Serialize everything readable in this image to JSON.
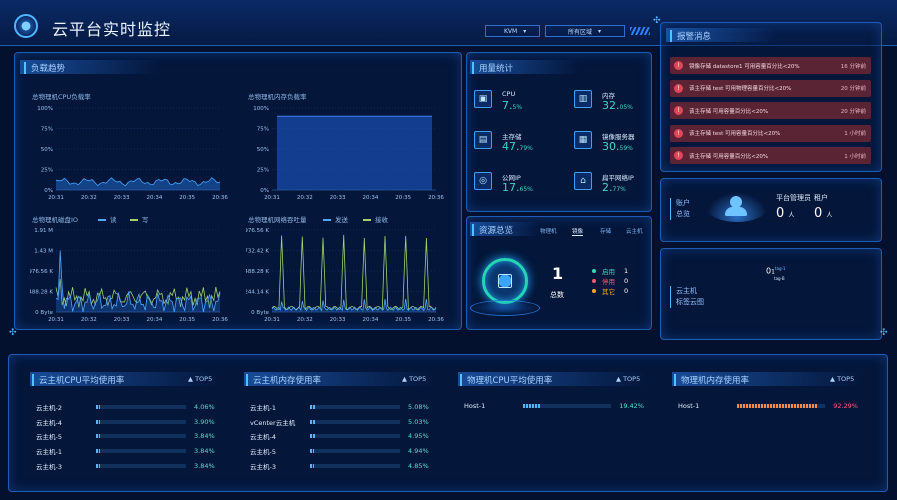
{
  "header": {
    "title": "云平台实时监控",
    "kvm": "KVM",
    "region": "所有区域"
  },
  "load_panel": {
    "title": "负载趋势",
    "cpu": {
      "title": "总物理机CPU负载率",
      "yticks": [
        "100%",
        "75%",
        "50%",
        "25%",
        "0%"
      ],
      "xticks": [
        "20:31",
        "20:32",
        "20:33",
        "20:34",
        "20:35",
        "20:36"
      ]
    },
    "mem": {
      "title": "总物理机内存负载率",
      "yticks": [
        "100%",
        "75%",
        "50%",
        "25%",
        "0%"
      ],
      "xticks": [
        "20:31",
        "20:32",
        "20:33",
        "20:34",
        "20:35",
        "20:36"
      ]
    },
    "disk": {
      "title": "总物理机磁盘IO",
      "legend_read": "读",
      "legend_write": "写",
      "yticks": [
        "1.91 M",
        "1.43 M",
        "976.56 K",
        "488.28 K",
        "0 Byte"
      ],
      "xticks": [
        "20:31",
        "20:32",
        "20:33",
        "20:34",
        "20:35",
        "20:36"
      ]
    },
    "net": {
      "title": "总物理机网络吞吐量",
      "legend_send": "发送",
      "legend_recv": "接收",
      "yticks": [
        "976.56 K",
        "732.42 K",
        "488.28 K",
        "244.14 K",
        "0 Byte"
      ],
      "xticks": [
        "20:31",
        "20:32",
        "20:33",
        "20:34",
        "20:35",
        "20:36"
      ]
    }
  },
  "usage_panel": {
    "title": "用量统计",
    "items": [
      {
        "name": "CPU",
        "value": "7.",
        "suffix": "5%",
        "icon": "cpu-icon"
      },
      {
        "name": "内存",
        "value": "32.",
        "suffix": "05%",
        "icon": "memory-icon"
      },
      {
        "name": "主存储",
        "value": "47.",
        "suffix": "79%",
        "icon": "storage-icon"
      },
      {
        "name": "镜像服务器",
        "value": "30.",
        "suffix": "59%",
        "icon": "image-server-icon"
      },
      {
        "name": "公网IP",
        "value": "17.",
        "suffix": "65%",
        "icon": "public-ip-icon"
      },
      {
        "name": "扁平网络IP",
        "value": "2.",
        "suffix": "77%",
        "icon": "flat-network-icon"
      }
    ]
  },
  "resource_panel": {
    "title": "资源总览",
    "tabs": [
      "物理机",
      "镜像",
      "存储",
      "云主机"
    ],
    "total": "1",
    "total_label": "总数",
    "legend": [
      {
        "label": "启用",
        "value": "1",
        "color": "#37d3b8"
      },
      {
        "label": "停用",
        "value": "0",
        "color": "#ff5a72"
      },
      {
        "label": "其它",
        "value": "0",
        "color": "#f5a623"
      }
    ]
  },
  "alerts": {
    "title": "报警消息",
    "items": [
      {
        "msg": "镜像存储 datastore1 可用容量百分比<20%",
        "time": "16 分钟前"
      },
      {
        "msg": "该主存储 test 可用物理容量百分比<20%",
        "time": "20 分钟前"
      },
      {
        "msg": "该主存储 可用容量百分比<20%",
        "time": "20 分钟前"
      },
      {
        "msg": "该主存储 test 可用容量百分比<20%",
        "time": "1 小时前"
      },
      {
        "msg": "该主存储 可用容量百分比<20%",
        "time": "1 小时前"
      }
    ]
  },
  "accounts": {
    "label1": "账户",
    "label2": "总览",
    "platform_admin": "平台管理员",
    "tenant": "租户",
    "admin_count": "0",
    "tenant_count": "0",
    "unit": "人"
  },
  "tags": {
    "label1": "云主机",
    "label2": "标签云图",
    "tag_value": "0",
    "tag_sup": "tag-1",
    "tag_sub": "tag-B",
    "tag_dot": "1"
  },
  "bottom": {
    "top5_label": "TOP5",
    "tables": [
      {
        "title": "云主机CPU平均使用率",
        "rows": [
          {
            "name": "云主机-2",
            "pct": "4.06%",
            "v": 0.041
          },
          {
            "name": "云主机-4",
            "pct": "3.90%",
            "v": 0.039
          },
          {
            "name": "云主机-5",
            "pct": "3.84%",
            "v": 0.038
          },
          {
            "name": "云主机-1",
            "pct": "3.84%",
            "v": 0.038
          },
          {
            "name": "云主机-3",
            "pct": "3.84%",
            "v": 0.038
          }
        ]
      },
      {
        "title": "云主机内存使用率",
        "rows": [
          {
            "name": "云主机-1",
            "pct": "5.08%",
            "v": 0.051
          },
          {
            "name": "vCenter云主机",
            "pct": "5.03%",
            "v": 0.05
          },
          {
            "name": "云主机-4",
            "pct": "4.95%",
            "v": 0.05
          },
          {
            "name": "云主机-5",
            "pct": "4.94%",
            "v": 0.049
          },
          {
            "name": "云主机-3",
            "pct": "4.85%",
            "v": 0.048
          }
        ]
      },
      {
        "title": "物理机CPU平均使用率",
        "rows": [
          {
            "name": "Host-1",
            "pct": "19.42%",
            "v": 0.194
          }
        ]
      },
      {
        "title": "物理机内存使用率",
        "rows": [
          {
            "name": "Host-1",
            "pct": "92.29%",
            "v": 0.923,
            "color": "#ff8a3d"
          }
        ]
      }
    ]
  }
}
